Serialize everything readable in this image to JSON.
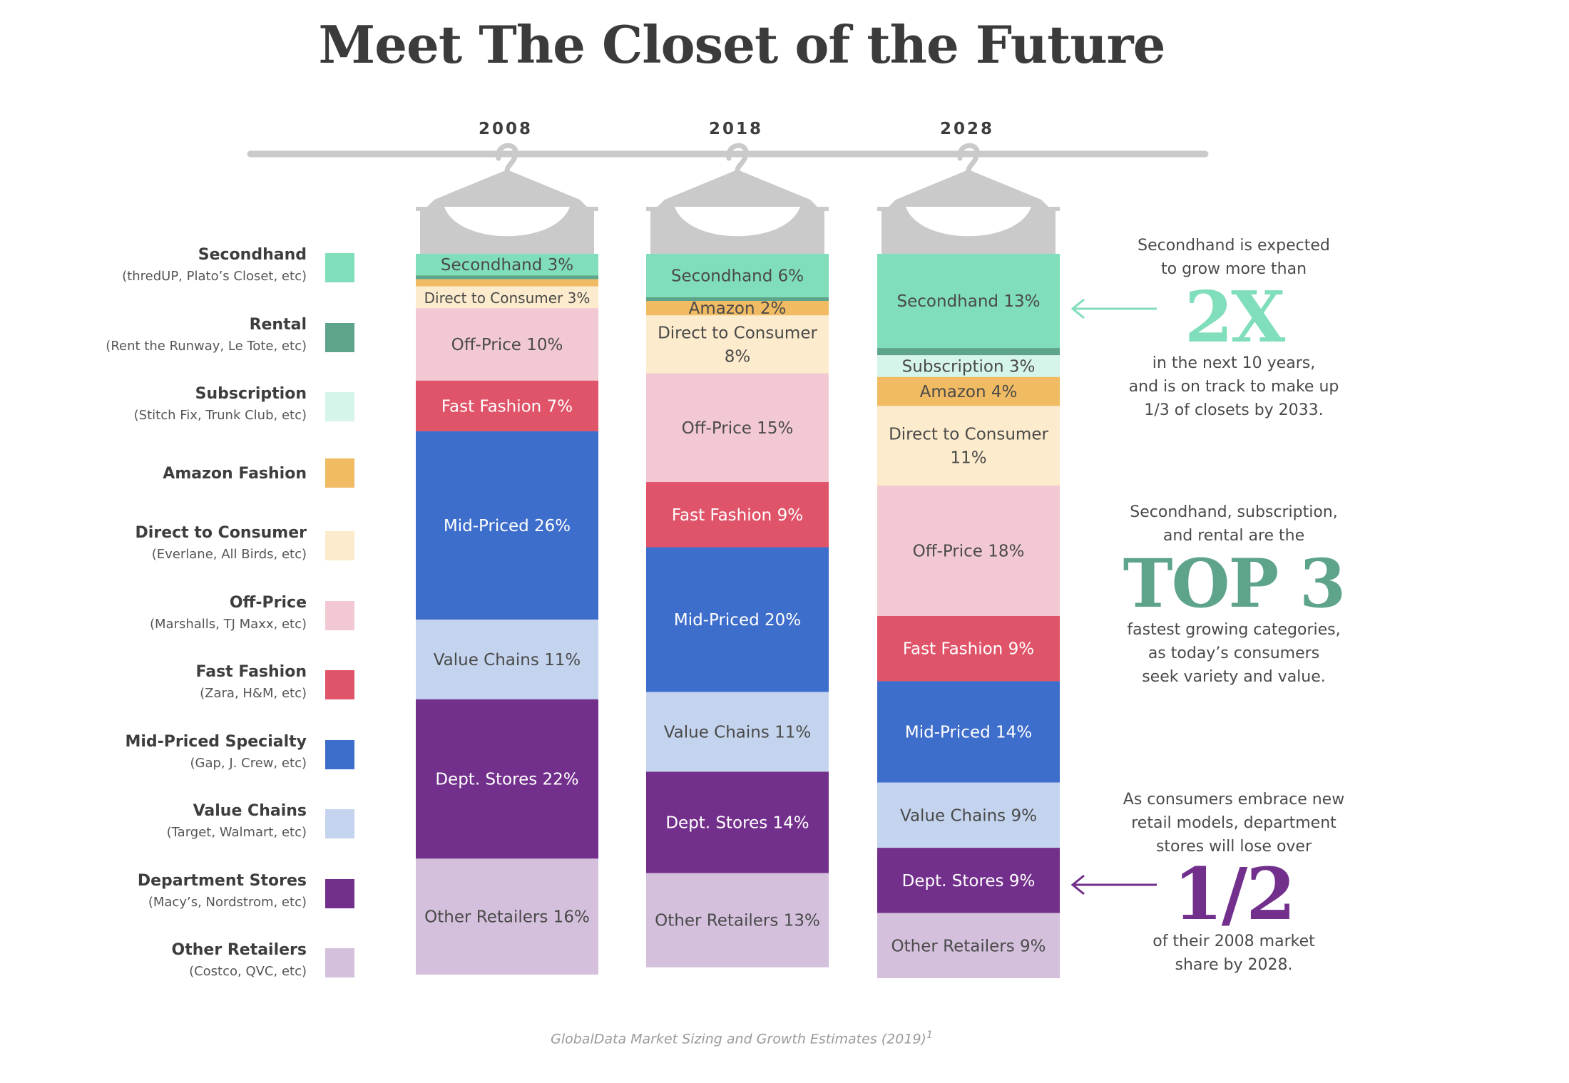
{
  "title": "Meet The Closet of the Future",
  "source": {
    "text": "GlobalData Market Sizing and Growth Estimates (2019)",
    "sup": "1"
  },
  "colors": {
    "secondhand": "#80deba",
    "rental": "#5ea48a",
    "subscription": "#d5f4ea",
    "amazon": "#f0bb63",
    "dtc": "#fcebcc",
    "offprice": "#f2c9d2",
    "fastfashion": "#e0546a",
    "midpriced": "#3e6ecb",
    "valuechains": "#c4d4ee",
    "deptstores": "#722f8b",
    "other": "#d4c0dc",
    "hanger": "#cacaca",
    "accent_green": "#5ea48a",
    "accent_purple": "#722f8b"
  },
  "legend": [
    {
      "key": "secondhand",
      "name": "Secondhand",
      "sub": "(thredUP, Plato’s Closet, etc)"
    },
    {
      "key": "rental",
      "name": "Rental",
      "sub": "(Rent the Runway, Le Tote, etc)"
    },
    {
      "key": "subscription",
      "name": "Subscription",
      "sub": "(Stitch Fix, Trunk Club, etc)"
    },
    {
      "key": "amazon",
      "name": "Amazon Fashion",
      "sub": ""
    },
    {
      "key": "dtc",
      "name": "Direct to Consumer",
      "sub": "(Everlane, All Birds, etc)"
    },
    {
      "key": "offprice",
      "name": "Off-Price",
      "sub": "(Marshalls, TJ Maxx, etc)"
    },
    {
      "key": "fastfashion",
      "name": "Fast Fashion",
      "sub": "(Zara, H&M, etc)"
    },
    {
      "key": "midpriced",
      "name": "Mid-Priced Specialty",
      "sub": "(Gap, J. Crew, etc)"
    },
    {
      "key": "valuechains",
      "name": "Value Chains",
      "sub": "(Target, Walmart, etc)"
    },
    {
      "key": "deptstores",
      "name": "Department Stores",
      "sub": "(Macy’s, Nordstrom, etc)"
    },
    {
      "key": "other",
      "name": "Other Retailers",
      "sub": "(Costco, QVC, etc)"
    }
  ],
  "chart_data": {
    "type": "bar",
    "stacked": true,
    "percent": true,
    "categories": [
      "2008",
      "2018",
      "2028"
    ],
    "series": [
      {
        "name": "Secondhand",
        "key": "secondhand",
        "values": [
          3,
          6,
          13
        ]
      },
      {
        "name": "Rental",
        "key": "rental",
        "values": [
          0.5,
          0.5,
          1
        ]
      },
      {
        "name": "Subscription",
        "key": "subscription",
        "values": [
          0,
          0,
          3
        ]
      },
      {
        "name": "Amazon Fashion",
        "key": "amazon",
        "values": [
          1,
          2,
          4
        ]
      },
      {
        "name": "Direct to Consumer",
        "key": "dtc",
        "values": [
          3,
          8,
          11
        ]
      },
      {
        "name": "Off-Price",
        "key": "offprice",
        "values": [
          10,
          15,
          18
        ]
      },
      {
        "name": "Fast Fashion",
        "key": "fastfashion",
        "values": [
          7,
          9,
          9
        ]
      },
      {
        "name": "Mid-Priced Specialty",
        "key": "midpriced",
        "values": [
          26,
          20,
          14
        ]
      },
      {
        "name": "Value Chains",
        "key": "valuechains",
        "values": [
          11,
          11,
          9
        ]
      },
      {
        "name": "Department Stores",
        "key": "deptstores",
        "values": [
          22,
          14,
          9
        ]
      },
      {
        "name": "Other Retailers",
        "key": "other",
        "values": [
          16,
          13,
          9
        ]
      }
    ],
    "segment_labels": [
      {
        "secondhand": "Secondhand 3%",
        "dtc": "Direct to Consumer 3%",
        "offprice": "Off-Price 10%",
        "fastfashion": "Fast Fashion 7%",
        "midpriced": "Mid-Priced 26%",
        "valuechains": "Value Chains 11%",
        "deptstores": "Dept. Stores 22%",
        "other": "Other Retailers 16%"
      },
      {
        "secondhand": "Secondhand 6%",
        "amazon": "Amazon 2%",
        "dtc": "Direct to Consumer\n8%",
        "offprice": "Off-Price 15%",
        "fastfashion": "Fast Fashion 9%",
        "midpriced": "Mid-Priced 20%",
        "valuechains": "Value Chains 11%",
        "deptstores": "Dept. Stores 14%",
        "other": "Other Retailers 13%"
      },
      {
        "secondhand": "Secondhand 13%",
        "subscription": "Subscription 3%",
        "amazon": "Amazon 4%",
        "dtc": "Direct to Consumer\n11%",
        "offprice": "Off-Price 18%",
        "fastfashion": "Fast Fashion 9%",
        "midpriced": "Mid-Priced 14%",
        "valuechains": "Value Chains 9%",
        "deptstores": "Dept. Stores 9%",
        "other": "Other Retailers 9%"
      }
    ]
  },
  "callouts": {
    "secondhand": {
      "lead": [
        "Secondhand is expected",
        "to grow more than"
      ],
      "big": "2X",
      "tail": [
        "in the next 10 years,",
        "and is on track to make up",
        "1/3 of closets by 2033."
      ]
    },
    "top3": {
      "lead": [
        "Secondhand, subscription,",
        "and rental are the"
      ],
      "big": "TOP 3",
      "tail": [
        "fastest growing categories,",
        "as today’s consumers",
        "seek variety and value."
      ]
    },
    "dept": {
      "lead": [
        "As consumers embrace new",
        "retail models, department",
        "stores will lose over"
      ],
      "big": "1/2",
      "tail": [
        "of their 2008 market",
        "share by 2028."
      ]
    }
  }
}
